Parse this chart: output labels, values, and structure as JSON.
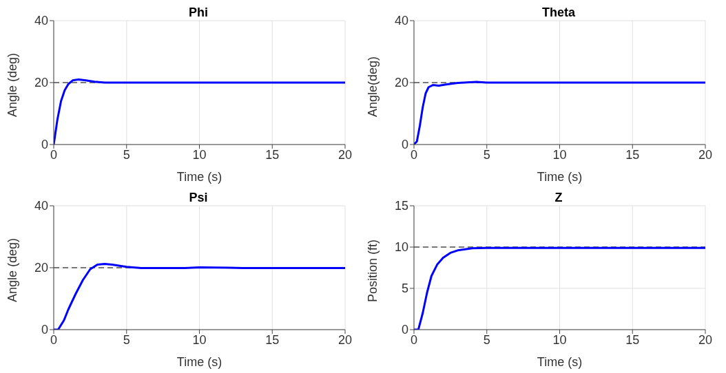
{
  "chart_data": [
    {
      "type": "line",
      "title": "Phi",
      "xlabel": "Time (s)",
      "ylabel": "Angle (deg)",
      "x": [
        0,
        0.25,
        0.5,
        0.75,
        1,
        1.3,
        1.7,
        2.2,
        2.8,
        3.5,
        5,
        10,
        15,
        20
      ],
      "series": [
        {
          "color": "#0000ff",
          "values": [
            0,
            8,
            14,
            17.5,
            19.5,
            20.7,
            21,
            20.7,
            20.3,
            20,
            20,
            20,
            20,
            20
          ]
        }
      ],
      "xlim": [
        0,
        20
      ],
      "xticks": [
        0,
        5,
        10,
        15,
        20
      ],
      "ylim": [
        0,
        40
      ],
      "yticks": [
        0,
        20,
        40
      ],
      "grid": true,
      "marker": "none",
      "line_style": "solid",
      "ref_lines": [
        {
          "axis": "y",
          "value": 20,
          "color": "#000000",
          "line_style": "dashed"
        }
      ]
    },
    {
      "type": "line",
      "title": "Theta",
      "xlabel": "Time (s)",
      "ylabel": "Angle(deg)",
      "x": [
        0,
        0.2,
        0.4,
        0.6,
        0.8,
        1,
        1.3,
        1.7,
        2.2,
        3,
        4.3,
        5,
        10,
        15,
        20
      ],
      "series": [
        {
          "color": "#0000ff",
          "values": [
            0,
            1,
            6,
            12,
            16.5,
            18.5,
            19.2,
            19,
            19.4,
            19.9,
            20.2,
            20,
            20,
            20,
            20
          ]
        }
      ],
      "xlim": [
        0,
        20
      ],
      "xticks": [
        0,
        5,
        10,
        15,
        20
      ],
      "ylim": [
        0,
        40
      ],
      "yticks": [
        0,
        20,
        40
      ],
      "grid": true,
      "marker": "none",
      "line_style": "solid",
      "ref_lines": [
        {
          "axis": "y",
          "value": 20,
          "color": "#000000",
          "line_style": "dashed"
        }
      ]
    },
    {
      "type": "line",
      "title": "Psi",
      "xlabel": "Time (s)",
      "ylabel": "Angle (deg)",
      "x": [
        0,
        0.3,
        0.7,
        1,
        1.5,
        2,
        2.5,
        3,
        3.5,
        4,
        5,
        6,
        9,
        10,
        12,
        13,
        20
      ],
      "series": [
        {
          "color": "#0000ff",
          "values": [
            0,
            0,
            3,
            6.5,
            11.5,
            16,
            19.5,
            21,
            21.2,
            21,
            20.3,
            19.9,
            19.9,
            20.1,
            20,
            19.9,
            19.9
          ]
        }
      ],
      "xlim": [
        0,
        20
      ],
      "xticks": [
        0,
        5,
        10,
        15,
        20
      ],
      "ylim": [
        0,
        40
      ],
      "yticks": [
        0,
        20,
        40
      ],
      "grid": true,
      "marker": "none",
      "line_style": "solid",
      "ref_lines": [
        {
          "axis": "y",
          "value": 20,
          "color": "#000000",
          "line_style": "dashed"
        }
      ]
    },
    {
      "type": "line",
      "title": "Z",
      "xlabel": "Time (s)",
      "ylabel": "Position (ft)",
      "x": [
        0,
        0.3,
        0.6,
        0.9,
        1.2,
        1.6,
        2,
        2.5,
        3,
        4,
        5,
        10,
        15,
        20
      ],
      "series": [
        {
          "color": "#0000ff",
          "values": [
            0,
            0,
            2,
            4.5,
            6.5,
            7.9,
            8.7,
            9.3,
            9.6,
            9.85,
            9.9,
            9.9,
            9.9,
            9.9
          ]
        }
      ],
      "xlim": [
        0,
        20
      ],
      "xticks": [
        0,
        5,
        10,
        15,
        20
      ],
      "ylim": [
        0,
        15
      ],
      "yticks": [
        0,
        5,
        10,
        15
      ],
      "grid": true,
      "marker": "none",
      "line_style": "solid",
      "ref_lines": [
        {
          "axis": "y",
          "value": 10,
          "color": "#000000",
          "line_style": "dashed"
        }
      ]
    }
  ]
}
